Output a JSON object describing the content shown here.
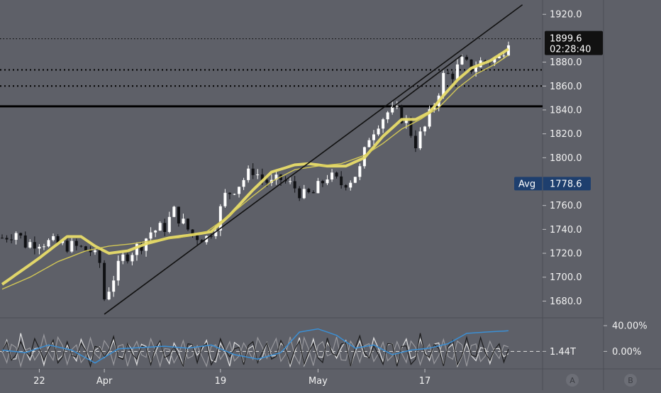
{
  "colors": {
    "background": "#5e6068",
    "candle": "#ffffff",
    "candle_alt": "#101114",
    "ma_fast": "#e8dc6a",
    "ma_slow": "#d8cc55",
    "trendline": "#111111",
    "level_line": "#000000",
    "grid": "#6e7078",
    "axis_text": "#f2f2f2",
    "price_tag_bg": "#111111",
    "avg_tag_bg": "#1e3f6e",
    "osc_white": "#f0f0f0",
    "osc_gray": "#a0a0a4",
    "osc_black": "#151515",
    "osc_blue": "#3b8fd4"
  },
  "chart_data": {
    "type": "candlestick",
    "title": "",
    "ylim": [
      1666,
      1932
    ],
    "y_ticks": [
      "1920.0",
      "1880.0",
      "1860.0",
      "1840.0",
      "1820.0",
      "1800.0",
      "1760.0",
      "1740.0",
      "1720.0",
      "1700.0",
      "1680.0"
    ],
    "x_ticks": [
      "22",
      "Apr",
      "19",
      "May",
      "17"
    ],
    "x_tick_positions_bar": [
      8,
      22,
      47,
      68,
      91
    ],
    "bars_count": 110,
    "close_path": [
      [
        0,
        1733
      ],
      [
        3,
        1738
      ],
      [
        5,
        1728
      ],
      [
        8,
        1730
      ],
      [
        12,
        1728
      ],
      [
        16,
        1725
      ],
      [
        19,
        1722
      ],
      [
        21,
        1712
      ],
      [
        22,
        1682
      ],
      [
        24,
        1700
      ],
      [
        26,
        1716
      ],
      [
        28,
        1722
      ],
      [
        30,
        1728
      ],
      [
        32,
        1738
      ],
      [
        35,
        1742
      ],
      [
        37,
        1755
      ],
      [
        39,
        1745
      ],
      [
        41,
        1735
      ],
      [
        44,
        1733
      ],
      [
        46,
        1745
      ],
      [
        48,
        1768
      ],
      [
        51,
        1778
      ],
      [
        54,
        1790
      ],
      [
        56,
        1782
      ],
      [
        58,
        1778
      ],
      [
        60,
        1782
      ],
      [
        63,
        1775
      ],
      [
        65,
        1768
      ],
      [
        67,
        1770
      ],
      [
        70,
        1785
      ],
      [
        73,
        1778
      ],
      [
        75,
        1782
      ],
      [
        77,
        1790
      ],
      [
        79,
        1818
      ],
      [
        81,
        1830
      ],
      [
        83,
        1838
      ],
      [
        85,
        1838
      ],
      [
        87,
        1830
      ],
      [
        89,
        1812
      ],
      [
        91,
        1825
      ],
      [
        93,
        1845
      ],
      [
        95,
        1868
      ],
      [
        97,
        1870
      ],
      [
        99,
        1880
      ],
      [
        101,
        1875
      ],
      [
        103,
        1880
      ],
      [
        105,
        1882
      ],
      [
        107,
        1883
      ],
      [
        109,
        1900
      ]
    ],
    "series": [
      {
        "kind": "moving_average",
        "values_path": [
          [
            0,
            1694
          ],
          [
            8,
            1716
          ],
          [
            14,
            1734
          ],
          [
            17,
            1734
          ],
          [
            20,
            1726
          ],
          [
            23,
            1720
          ],
          [
            27,
            1722
          ],
          [
            31,
            1728
          ],
          [
            36,
            1733
          ],
          [
            40,
            1735
          ],
          [
            45,
            1738
          ],
          [
            49,
            1752
          ],
          [
            54,
            1773
          ],
          [
            58,
            1788
          ],
          [
            63,
            1794
          ],
          [
            66,
            1795
          ],
          [
            70,
            1793
          ],
          [
            74,
            1793
          ],
          [
            78,
            1800
          ],
          [
            82,
            1818
          ],
          [
            86,
            1832
          ],
          [
            89,
            1832
          ],
          [
            92,
            1838
          ],
          [
            95,
            1852
          ],
          [
            98,
            1865
          ],
          [
            101,
            1875
          ],
          [
            105,
            1881
          ],
          [
            109,
            1891
          ]
        ]
      },
      {
        "kind": "moving_average",
        "values_path": [
          [
            0,
            1690
          ],
          [
            6,
            1700
          ],
          [
            12,
            1713
          ],
          [
            18,
            1722
          ],
          [
            23,
            1726
          ],
          [
            28,
            1728
          ],
          [
            33,
            1731
          ],
          [
            38,
            1733
          ],
          [
            44,
            1738
          ],
          [
            49,
            1752
          ],
          [
            54,
            1768
          ],
          [
            58,
            1780
          ],
          [
            63,
            1790
          ],
          [
            68,
            1793
          ],
          [
            73,
            1795
          ],
          [
            78,
            1802
          ],
          [
            82,
            1812
          ],
          [
            86,
            1824
          ],
          [
            90,
            1832
          ],
          [
            94,
            1842
          ],
          [
            98,
            1858
          ],
          [
            102,
            1870
          ],
          [
            106,
            1878
          ],
          [
            109,
            1886
          ]
        ]
      }
    ],
    "trendlines": [
      {
        "from": [
          22,
          1669
        ],
        "to": [
          112,
          1928
        ]
      },
      {
        "from": [
          84,
          1842
        ],
        "to": [
          99,
          1886
        ]
      }
    ],
    "horizontal_levels": [
      {
        "value": 1899.6,
        "style": "dotted"
      },
      {
        "value": 1873.5,
        "style": "dashed"
      },
      {
        "value": 1860.0,
        "style": "dashed"
      },
      {
        "value": 1843.0,
        "style": "solid"
      }
    ],
    "price_label": {
      "price": "1899.6",
      "countdown": "02:28:40",
      "value": 1899.6
    },
    "avg_label": {
      "name": "Avg",
      "value": 1778.6
    },
    "oscillator": {
      "ylim": [
        -0.25,
        0.5
      ],
      "y_ticks": [
        "40.00%",
        "0.00%"
      ],
      "zero_value": 0,
      "level_label": "1.44T",
      "blue_path": [
        [
          0,
          0.02
        ],
        [
          5,
          -0.02
        ],
        [
          10,
          0.1
        ],
        [
          15,
          0.02
        ],
        [
          20,
          -0.18
        ],
        [
          25,
          0.04
        ],
        [
          30,
          0.06
        ],
        [
          35,
          0.08
        ],
        [
          40,
          0.05
        ],
        [
          45,
          0.1
        ],
        [
          50,
          -0.05
        ],
        [
          55,
          -0.12
        ],
        [
          60,
          -0.02
        ],
        [
          64,
          0.3
        ],
        [
          68,
          0.35
        ],
        [
          72,
          0.25
        ],
        [
          76,
          0.05
        ],
        [
          80,
          0.1
        ],
        [
          84,
          -0.05
        ],
        [
          88,
          0.02
        ],
        [
          92,
          0.05
        ],
        [
          96,
          0.12
        ],
        [
          100,
          0.28
        ],
        [
          104,
          0.3
        ],
        [
          109,
          0.32
        ]
      ]
    },
    "bottom_buttons": [
      "A",
      "B"
    ]
  }
}
